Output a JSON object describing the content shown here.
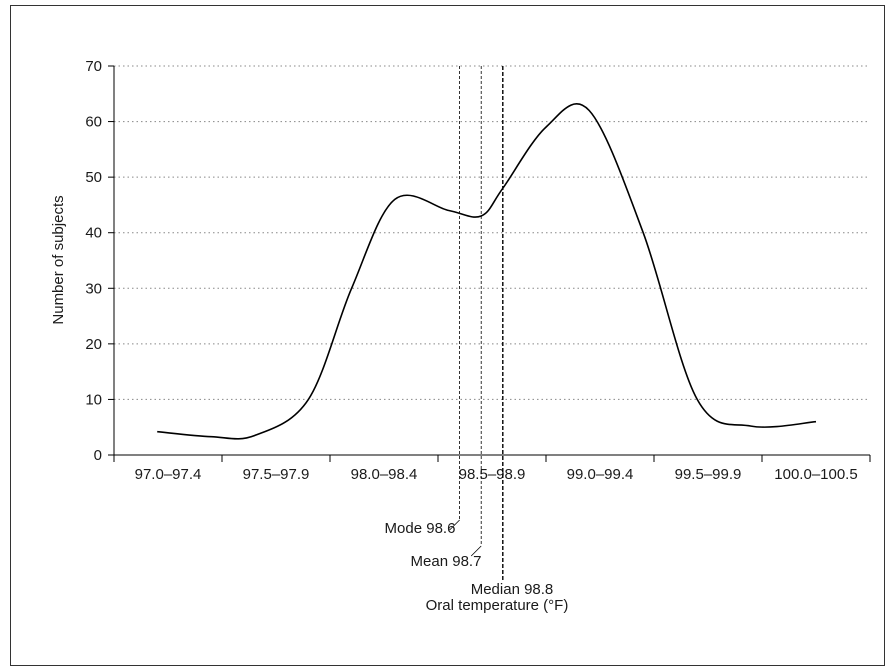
{
  "chart_data": {
    "type": "line",
    "title": "",
    "xlabel": "Oral temperature (°F)",
    "ylabel": "Number of subjects",
    "categories": [
      "97.0–97.4",
      "97.5–97.9",
      "98.0–98.4",
      "98.5–98.9",
      "99.0–99.4",
      "99.5–99.9",
      "100.0–100.5"
    ],
    "ylim": [
      0,
      70
    ],
    "yticks": [
      0,
      10,
      20,
      30,
      40,
      50,
      60,
      70
    ],
    "grid": "horizontal-dotted",
    "curve": {
      "x": [
        97.2,
        97.45,
        97.65,
        97.9,
        98.1,
        98.3,
        98.55,
        98.7,
        98.8,
        99.0,
        99.2,
        99.45,
        99.7,
        99.95,
        100.25
      ],
      "y": [
        4.2,
        3.3,
        3.5,
        10,
        30,
        46,
        44,
        43,
        48,
        59,
        62,
        40,
        10,
        5.2,
        6
      ]
    },
    "annotations": [
      {
        "label": "Mode 98.6",
        "x": 98.6,
        "style": "dashed-thin"
      },
      {
        "label": "Mean 98.7",
        "x": 98.7,
        "style": "dashed-thin"
      },
      {
        "label": "Median 98.8",
        "x": 98.8,
        "style": "dashed-thick"
      }
    ],
    "colors": {
      "line": "#000000",
      "grid": "#888888",
      "text": "#1a1a1a"
    }
  }
}
